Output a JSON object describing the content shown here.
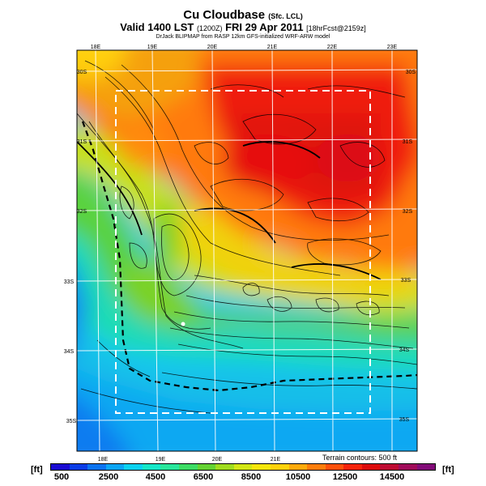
{
  "header": {
    "title": "Cu Cloudbase",
    "title_suffix": "(Sfc. LCL)",
    "valid_line": "Valid 1400 LST",
    "valid_utc": "(1200Z)",
    "valid_date": "FRI 29 Apr 2011",
    "forecast_tag": "[18hrFcst@2159z]",
    "credit": "DrJack BLIPMAP from RASP 12km GFS-initialized WRF-ARW model"
  },
  "map": {
    "top_lon_labels": [
      "18E",
      "19E",
      "20E",
      "21E",
      "22E",
      "23E"
    ],
    "bottom_lon_labels": [
      "18E",
      "19E",
      "20E",
      "21E"
    ],
    "left_lat_labels": [
      "30S",
      "31S",
      "32S",
      "33S",
      "34S",
      "35S"
    ],
    "right_lat_labels": [
      "30S",
      "31S",
      "32S",
      "33S",
      "34S",
      "35S"
    ],
    "terrain_note": "Terrain contours: 500 ft"
  },
  "colorbar": {
    "unit_left": "[ft]",
    "unit_right": "[ft]",
    "labels": [
      "500",
      "2500",
      "4500",
      "6500",
      "8500",
      "10500",
      "12500",
      "14500"
    ],
    "colors": [
      "#1a0ad2",
      "#0a3ce6",
      "#0a73f0",
      "#0aa5f5",
      "#0ad2f0",
      "#14e6c8",
      "#28e69b",
      "#3cdc64",
      "#64d232",
      "#a0dc1e",
      "#d2e614",
      "#f5e60a",
      "#ffd20a",
      "#ffaa0a",
      "#ff7d0a",
      "#ff500a",
      "#f5230a",
      "#dc0a0a",
      "#be0a32",
      "#a00a5a",
      "#820a78"
    ]
  }
}
